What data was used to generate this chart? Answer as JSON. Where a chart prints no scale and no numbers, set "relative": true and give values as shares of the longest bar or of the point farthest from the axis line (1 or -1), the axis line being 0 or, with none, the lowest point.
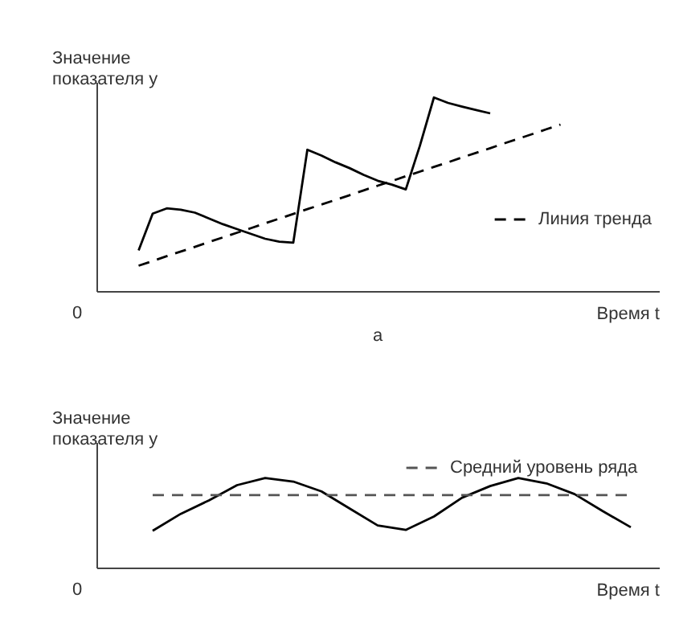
{
  "chart_data": [
    {
      "type": "line",
      "relative": true,
      "xlabel": "Время t",
      "ylabel": "Значение\nпоказателя y",
      "legend": "right",
      "annotations": [
        "0",
        "а"
      ],
      "categories": [
        null,
        null,
        null,
        null,
        null,
        null,
        null,
        null,
        null,
        null,
        null,
        null,
        null,
        null,
        null,
        null,
        null,
        null,
        null,
        null,
        null,
        null,
        null,
        null,
        null,
        null,
        null,
        null,
        null,
        null,
        null,
        null,
        null,
        null,
        null,
        null,
        null,
        null,
        null,
        null,
        null
      ],
      "series": [
        {
          "color": "#000000",
          "line_style": "solid",
          "values": [
            null,
            null,
            null,
            0.21,
            0.4,
            0.427,
            0.42,
            0.405,
            0.375,
            0.345,
            0.32,
            0.295,
            0.27,
            0.255,
            0.25,
            0.73,
            0.7,
            0.665,
            0.635,
            0.6,
            0.57,
            0.55,
            0.525,
            0.75,
            1.0,
            0.972,
            0.953,
            0.935,
            0.918,
            null,
            null,
            null,
            null,
            null,
            null,
            null,
            null,
            null,
            null,
            null,
            null
          ]
        },
        {
          "name": "Линия тренда",
          "color": "#000000",
          "line_style": "dashed",
          "values": [
            null,
            null,
            null,
            0.131,
            0.155,
            0.18,
            0.204,
            0.228,
            0.253,
            0.277,
            0.301,
            0.325,
            0.35,
            0.374,
            0.398,
            0.423,
            0.447,
            0.471,
            0.495,
            0.52,
            0.544,
            0.568,
            0.593,
            0.617,
            0.641,
            0.665,
            0.69,
            0.714,
            0.738,
            0.763,
            0.787,
            0.811,
            0.836,
            0.86,
            null,
            null,
            null,
            null,
            null,
            null,
            null
          ]
        }
      ]
    },
    {
      "type": "line",
      "relative": true,
      "xlabel": "Время t",
      "ylabel": "Значение\nпоказателя y",
      "legend": "top right",
      "annotations": [
        "0"
      ],
      "categories": [
        null,
        null,
        null,
        null,
        null,
        null,
        null,
        null,
        null,
        null,
        null,
        null,
        null,
        null,
        null,
        null,
        null,
        null,
        null,
        null,
        null
      ],
      "series": [
        {
          "color": "#000000",
          "line_style": "solid",
          "values": [
            null,
            null,
            0.41,
            0.6,
            0.75,
            0.92,
            1.0,
            0.96,
            0.85,
            0.66,
            0.47,
            0.42,
            0.57,
            0.78,
            0.91,
            1.0,
            0.94,
            0.82,
            0.63,
            0.45,
            null
          ]
        },
        {
          "name": "Средний уровень ряда",
          "color": "#555555",
          "line_style": "dashed",
          "values": [
            null,
            null,
            0.809,
            0.809,
            0.809,
            0.809,
            0.809,
            0.809,
            0.809,
            0.809,
            0.809,
            0.809,
            0.809,
            0.809,
            0.809,
            0.809,
            0.809,
            0.809,
            0.809,
            0.809,
            null
          ]
        }
      ]
    }
  ]
}
